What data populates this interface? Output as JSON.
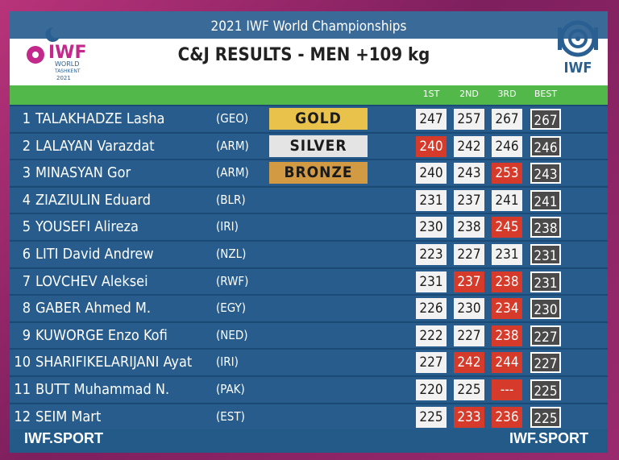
{
  "header": {
    "event": "2021 IWF World Championships",
    "title": "C&J RESULTS - MEN +109 kg"
  },
  "logo_left": {
    "word": "IWF",
    "sub1": "WORLD",
    "sub2": "TASHKENT",
    "year": "2021",
    "colors": {
      "magenta": "#c2298a",
      "blue": "#2a5f92"
    }
  },
  "logo_right": {
    "word": "IWF"
  },
  "columns": [
    "1ST",
    "2ND",
    "3RD",
    "BEST"
  ],
  "rows": [
    {
      "rank": "1",
      "name": "TALAKHADZE Lasha",
      "country": "(GEO)",
      "medal": "GOLD",
      "medal_class": "gold",
      "lifts": [
        {
          "v": "247",
          "s": "good"
        },
        {
          "v": "257",
          "s": "good"
        },
        {
          "v": "267",
          "s": "good"
        }
      ],
      "best": "267"
    },
    {
      "rank": "2",
      "name": "LALAYAN Varazdat",
      "country": "(ARM)",
      "medal": "SILVER",
      "medal_class": "silver",
      "lifts": [
        {
          "v": "240",
          "s": "miss"
        },
        {
          "v": "242",
          "s": "good"
        },
        {
          "v": "246",
          "s": "good"
        }
      ],
      "best": "246"
    },
    {
      "rank": "3",
      "name": "MINASYAN Gor",
      "country": "(ARM)",
      "medal": "BRONZE",
      "medal_class": "bronze",
      "lifts": [
        {
          "v": "240",
          "s": "good"
        },
        {
          "v": "243",
          "s": "good"
        },
        {
          "v": "253",
          "s": "miss"
        }
      ],
      "best": "243"
    },
    {
      "rank": "4",
      "name": "ZIAZIULIN Eduard",
      "country": "(BLR)",
      "medal": "",
      "medal_class": "",
      "lifts": [
        {
          "v": "231",
          "s": "good"
        },
        {
          "v": "237",
          "s": "good"
        },
        {
          "v": "241",
          "s": "good"
        }
      ],
      "best": "241"
    },
    {
      "rank": "5",
      "name": "YOUSEFI Alireza",
      "country": "(IRI)",
      "medal": "",
      "medal_class": "",
      "lifts": [
        {
          "v": "230",
          "s": "good"
        },
        {
          "v": "238",
          "s": "good"
        },
        {
          "v": "245",
          "s": "miss"
        }
      ],
      "best": "238"
    },
    {
      "rank": "6",
      "name": "LITI David Andrew",
      "country": "(NZL)",
      "medal": "",
      "medal_class": "",
      "lifts": [
        {
          "v": "223",
          "s": "good"
        },
        {
          "v": "227",
          "s": "good"
        },
        {
          "v": "231",
          "s": "good"
        }
      ],
      "best": "231"
    },
    {
      "rank": "7",
      "name": "LOVCHEV Aleksei",
      "country": "(RWF)",
      "medal": "",
      "medal_class": "",
      "lifts": [
        {
          "v": "231",
          "s": "good"
        },
        {
          "v": "237",
          "s": "miss"
        },
        {
          "v": "238",
          "s": "miss"
        }
      ],
      "best": "231"
    },
    {
      "rank": "8",
      "name": "GABER Ahmed M.",
      "country": "(EGY)",
      "medal": "",
      "medal_class": "",
      "lifts": [
        {
          "v": "226",
          "s": "good"
        },
        {
          "v": "230",
          "s": "good"
        },
        {
          "v": "234",
          "s": "miss"
        }
      ],
      "best": "230"
    },
    {
      "rank": "9",
      "name": "KUWORGE Enzo Kofi",
      "country": "(NED)",
      "medal": "",
      "medal_class": "",
      "lifts": [
        {
          "v": "222",
          "s": "good"
        },
        {
          "v": "227",
          "s": "good"
        },
        {
          "v": "238",
          "s": "miss"
        }
      ],
      "best": "227"
    },
    {
      "rank": "10",
      "name": "SHARIFIKELARIJANI Ayat",
      "country": "(IRI)",
      "medal": "",
      "medal_class": "",
      "lifts": [
        {
          "v": "227",
          "s": "good"
        },
        {
          "v": "242",
          "s": "miss"
        },
        {
          "v": "244",
          "s": "miss"
        }
      ],
      "best": "227"
    },
    {
      "rank": "11",
      "name": "BUTT Muhammad N.",
      "country": "(PAK)",
      "medal": "",
      "medal_class": "",
      "lifts": [
        {
          "v": "220",
          "s": "good"
        },
        {
          "v": "225",
          "s": "good"
        },
        {
          "v": "---",
          "s": "none"
        }
      ],
      "best": "225"
    },
    {
      "rank": "12",
      "name": "SEIM Mart",
      "country": "(EST)",
      "medal": "",
      "medal_class": "",
      "lifts": [
        {
          "v": "225",
          "s": "good"
        },
        {
          "v": "233",
          "s": "miss"
        },
        {
          "v": "236",
          "s": "miss"
        }
      ],
      "best": "225"
    }
  ],
  "footer": {
    "left": "IWF.SPORT",
    "right": "IWF.SPORT"
  },
  "colors": {
    "board": "#235a88",
    "green": "#52b849",
    "gold": "#e8c24a",
    "silver": "#e4e4e4",
    "bronze": "#d19a43",
    "miss": "#d53a2a",
    "best": "#4a4a4a"
  }
}
